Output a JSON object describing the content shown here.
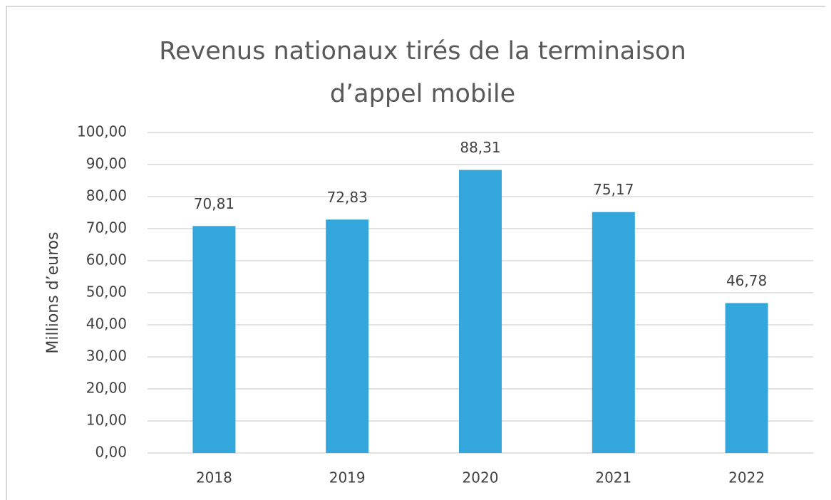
{
  "chart_data": {
    "type": "bar",
    "title": "Revenus nationaux tirés de la terminaison d’appel mobile",
    "y_axis_label": "Millions d’euros",
    "categories": [
      "2018",
      "2019",
      "2020",
      "2021",
      "2022"
    ],
    "values": [
      70.81,
      72.83,
      88.31,
      75.17,
      46.78
    ],
    "value_labels": [
      "70,81",
      "72,83",
      "88,31",
      "75,17",
      "46,78"
    ],
    "color": "#33a6dc",
    "ylim": [
      0,
      100
    ],
    "yticks": [
      {
        "value": 0,
        "label": "0,00"
      },
      {
        "value": 10,
        "label": "10,00"
      },
      {
        "value": 20,
        "label": "20,00"
      },
      {
        "value": 30,
        "label": "30,00"
      },
      {
        "value": 40,
        "label": "40,00"
      },
      {
        "value": 50,
        "label": "50,00"
      },
      {
        "value": 60,
        "label": "60,00"
      },
      {
        "value": 70,
        "label": "70,00"
      },
      {
        "value": 80,
        "label": "80,00"
      },
      {
        "value": 90,
        "label": "90,00"
      },
      {
        "value": 100,
        "label": "100,00"
      }
    ],
    "grid": true
  }
}
